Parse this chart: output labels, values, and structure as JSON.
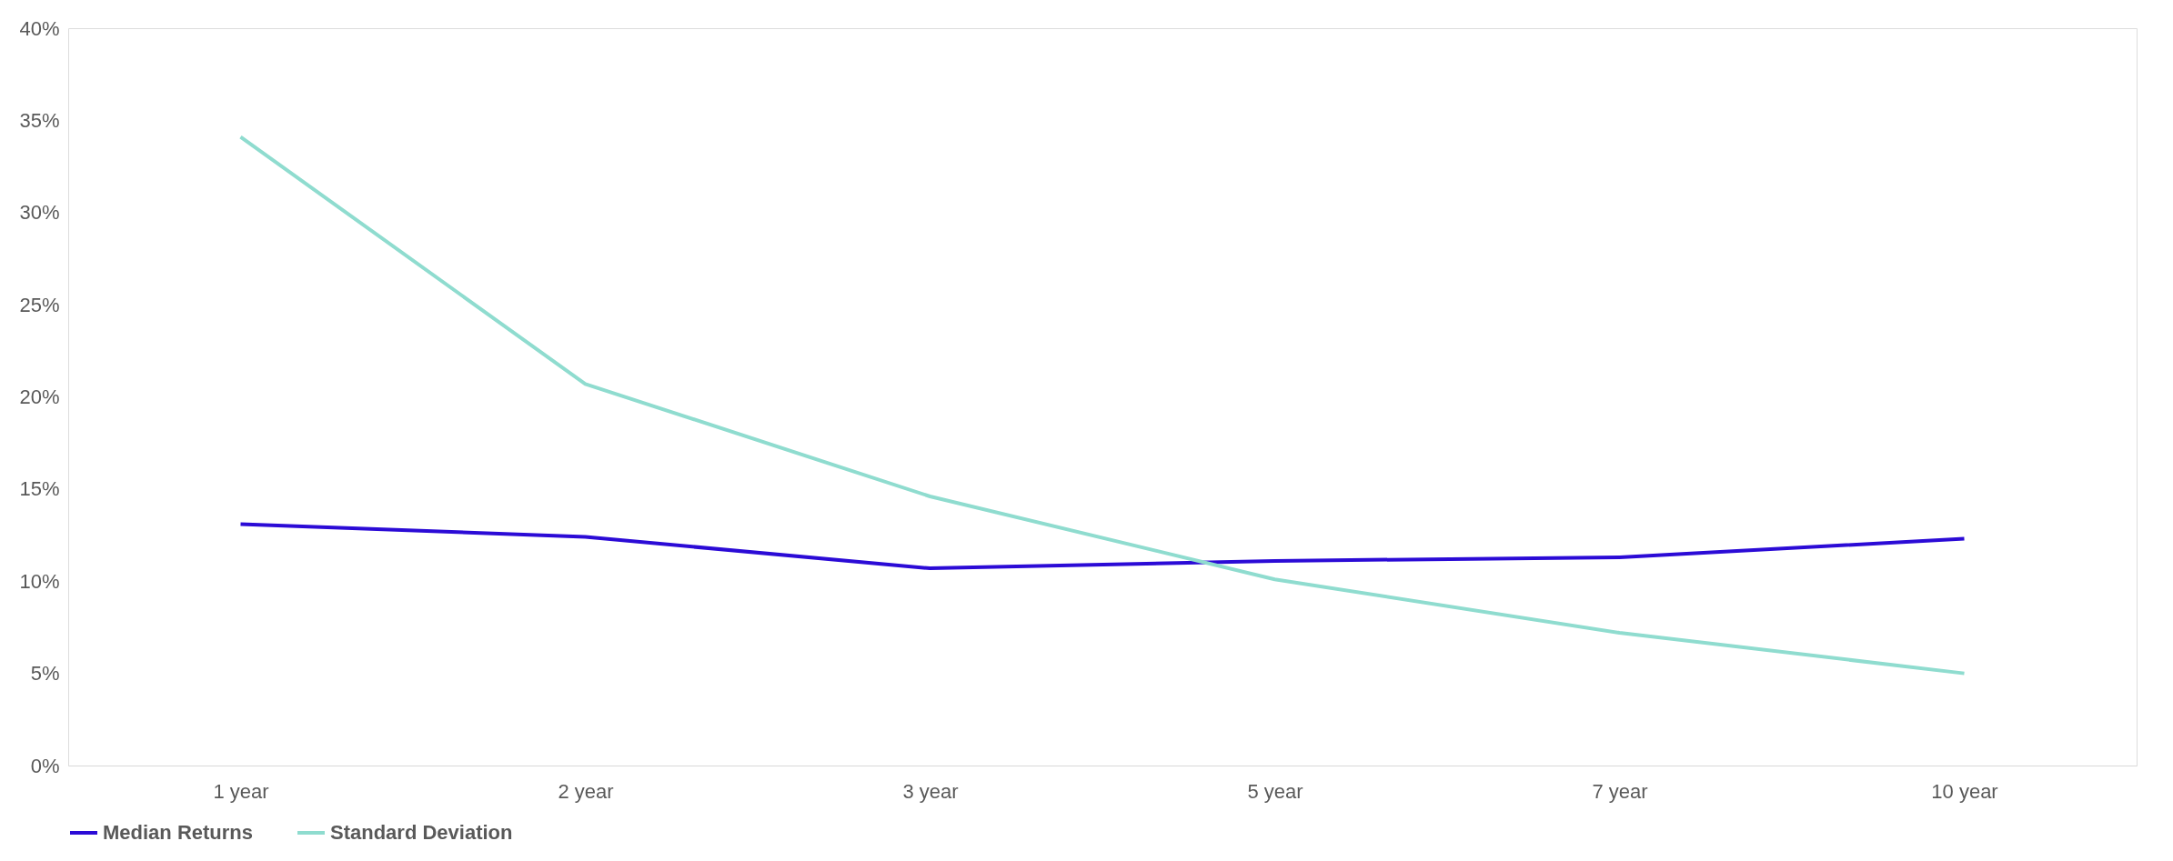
{
  "chart_data": {
    "type": "line",
    "categories": [
      "1 year",
      "2 year",
      "3 year",
      "5 year",
      "7 year",
      "10 year"
    ],
    "series": [
      {
        "name": "Median Returns",
        "color": "#2b0bd6",
        "values": [
          13.1,
          12.4,
          10.7,
          11.1,
          11.3,
          12.3
        ]
      },
      {
        "name": "Standard Deviation",
        "color": "#8fdccf",
        "values": [
          34.1,
          20.7,
          14.6,
          10.1,
          7.2,
          5.0
        ]
      }
    ],
    "ylim": [
      0,
      40
    ],
    "yticks": [
      {
        "value": 0,
        "label": "0%"
      },
      {
        "value": 5,
        "label": "5%"
      },
      {
        "value": 10,
        "label": "10%"
      },
      {
        "value": 15,
        "label": "15%"
      },
      {
        "value": 20,
        "label": "20%"
      },
      {
        "value": 25,
        "label": "25%"
      },
      {
        "value": 30,
        "label": "30%"
      },
      {
        "value": 35,
        "label": "35%"
      },
      {
        "value": 40,
        "label": "40%"
      }
    ],
    "grid": false,
    "legend": "bottom",
    "marker": "none",
    "line_style": "solid"
  }
}
